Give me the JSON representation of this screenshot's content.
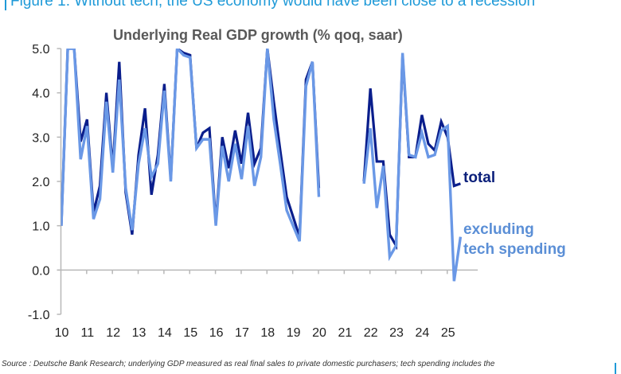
{
  "figure_title": "Figure 1: Without tech, the US economy would have been close to a recession",
  "source_note": "Source : Deutsche Bank Research; underlying GDP measured as real final sales to private domestic purchasers; tech spending includes the",
  "colors": {
    "total": "#0a1e8c",
    "excluding_tech": "#6a98e6",
    "figure_title": "#1f9ad8",
    "axis": "#b8b8b8"
  },
  "chart_data": {
    "type": "line",
    "title": "Underlying Real GDP growth (% qoq, saar)",
    "xlabel": "",
    "ylabel": "",
    "ylim": [
      -1.0,
      5.0
    ],
    "yticks": [
      "5.0",
      "4.0",
      "3.0",
      "2.0",
      "1.0",
      "0.0",
      "-1.0"
    ],
    "ytick_values": [
      5,
      4,
      3,
      2,
      1,
      0,
      -1
    ],
    "xticks": [
      "10",
      "11",
      "12",
      "13",
      "14",
      "15",
      "16",
      "17",
      "18",
      "19",
      "20",
      "21",
      "22",
      "23",
      "24",
      "25"
    ],
    "x_start_year": 2010,
    "frequency": "quarterly",
    "grid": false,
    "legend": "right, inline labels",
    "series": [
      {
        "name": "total",
        "label": "total",
        "values": [
          1.0,
          5.0,
          5.0,
          2.9,
          3.4,
          1.3,
          1.9,
          4.0,
          2.3,
          4.7,
          1.75,
          0.8,
          2.6,
          3.65,
          1.7,
          2.6,
          4.2,
          2.05,
          5.0,
          4.9,
          4.85,
          2.75,
          3.1,
          3.2,
          1.05,
          3.0,
          2.3,
          3.15,
          2.4,
          3.55,
          2.4,
          2.75,
          5.0,
          3.8,
          2.7,
          1.65,
          1.2,
          0.75,
          4.3,
          4.7,
          1.85,
          null,
          null,
          null,
          null,
          null,
          null,
          2.0,
          4.1,
          2.45,
          2.45,
          0.8,
          0.55,
          4.85,
          2.55,
          2.55,
          3.5,
          2.85,
          2.7,
          3.35,
          3.0,
          1.9,
          1.95
        ]
      },
      {
        "name": "excluding tech spending",
        "label": "excluding\ntech spending",
        "values": [
          1.0,
          5.0,
          5.0,
          2.5,
          3.25,
          1.15,
          1.6,
          3.8,
          2.2,
          4.3,
          1.85,
          0.9,
          2.4,
          3.2,
          2.1,
          2.4,
          4.05,
          2.0,
          5.0,
          4.85,
          4.8,
          2.75,
          2.95,
          2.95,
          1.0,
          2.8,
          2.0,
          2.85,
          2.05,
          3.25,
          1.9,
          2.55,
          5.0,
          3.4,
          2.4,
          1.35,
          1.0,
          0.65,
          4.15,
          4.7,
          1.65,
          null,
          null,
          null,
          null,
          null,
          null,
          1.95,
          3.2,
          1.4,
          2.35,
          0.3,
          0.55,
          4.9,
          2.6,
          2.55,
          3.1,
          2.55,
          2.6,
          3.15,
          3.25,
          -0.25,
          0.75
        ]
      }
    ]
  }
}
